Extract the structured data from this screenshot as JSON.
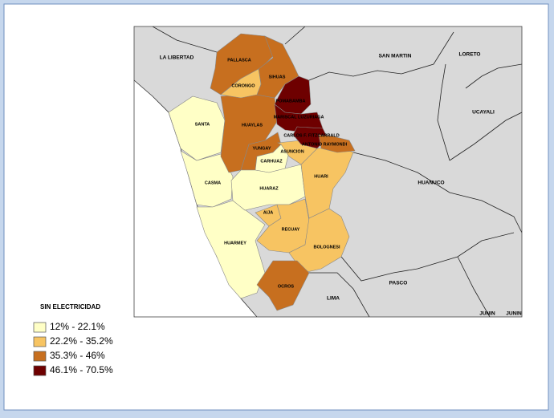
{
  "legend": {
    "title": "SIN ELECTRICIDAD",
    "items": [
      {
        "label": "12% - 22.1%",
        "color": "#ffffc6"
      },
      {
        "label": "22.2% - 35.2%",
        "color": "#f7c462"
      },
      {
        "label": "35.3% - 46%",
        "color": "#c76f1f"
      },
      {
        "label": "46.1% - 70.5%",
        "color": "#6e0000"
      }
    ]
  },
  "neighbors": [
    "LA LIBERTAD",
    "SAN MARTIN",
    "LORETO",
    "UCAYALI",
    "HUANUCO",
    "PASCO",
    "LIMA",
    "JUNIN",
    "JUNIN"
  ],
  "provinces": [
    {
      "name": "SANTA",
      "color": "#ffffc6"
    },
    {
      "name": "CASMA",
      "color": "#ffffc6"
    },
    {
      "name": "HUARMEY",
      "color": "#ffffc6"
    },
    {
      "name": "HUAYLAS",
      "color": "#c76f1f"
    },
    {
      "name": "PALLASCA",
      "color": "#c76f1f"
    },
    {
      "name": "SIHUAS",
      "color": "#c76f1f"
    },
    {
      "name": "CORONGO",
      "color": "#f7c462"
    },
    {
      "name": "YUNGAY",
      "color": "#c76f1f"
    },
    {
      "name": "CARHUAZ",
      "color": "#ffffc6"
    },
    {
      "name": "HUARAZ",
      "color": "#ffffc6"
    },
    {
      "name": "AIJA",
      "color": "#f7c462"
    },
    {
      "name": "RECUAY",
      "color": "#f7c462"
    },
    {
      "name": "HUARI",
      "color": "#f7c462"
    },
    {
      "name": "ASUNCION",
      "color": "#f7c462"
    },
    {
      "name": "BOLOGNESI",
      "color": "#f7c462"
    },
    {
      "name": "OCROS",
      "color": "#c76f1f"
    },
    {
      "name": "POMABAMBA",
      "color": "#6e0000"
    },
    {
      "name": "MARISCAL LUZURIAGA",
      "color": "#6e0000"
    },
    {
      "name": "CARLOS F. FITZCARRALD",
      "color": "#6e0000"
    },
    {
      "name": "ANTONIO RAYMONDI",
      "color": "#c76f1f"
    }
  ]
}
